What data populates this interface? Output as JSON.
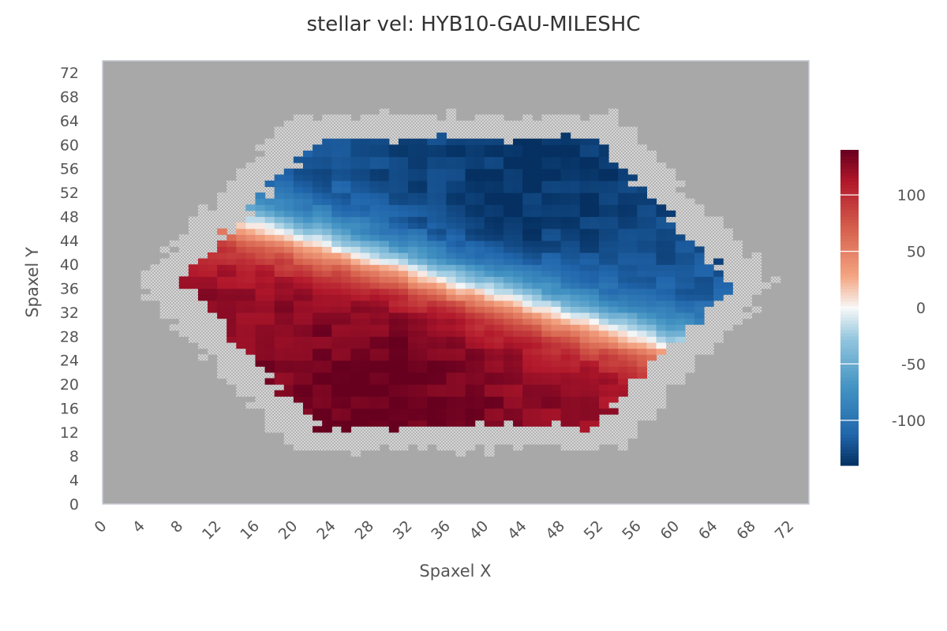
{
  "chart_data": {
    "type": "heatmap",
    "title": "stellar vel: HYB10-GAU-MILESHC",
    "xlabel": "Spaxel X",
    "ylabel": "Spaxel Y",
    "xlim": [
      0,
      74
    ],
    "ylim": [
      0,
      74
    ],
    "xticks": [
      "0",
      "4",
      "8",
      "12",
      "16",
      "20",
      "24",
      "28",
      "32",
      "36",
      "40",
      "44",
      "48",
      "52",
      "56",
      "60",
      "64",
      "68",
      "72"
    ],
    "yticks": [
      "0",
      "4",
      "8",
      "12",
      "16",
      "20",
      "24",
      "28",
      "32",
      "36",
      "40",
      "44",
      "48",
      "52",
      "56",
      "60",
      "64",
      "68",
      "72"
    ],
    "colorbar": {
      "min": -140,
      "max": 140,
      "ticks": [
        "-100",
        "-50",
        "0",
        "50",
        "100"
      ],
      "tick_values": [
        -100,
        -50,
        0,
        50,
        100
      ],
      "colormap": "RdBu_r (diverging blue-white-red)"
    },
    "background_color": "#a8a8a8",
    "field_center": [
      37,
      37
    ],
    "field_hex_rx": 29,
    "field_hex_ry": 24,
    "masked_rim_hatched": true,
    "velocity_field": {
      "description": "rotating disc; negative (approaching) top-left, positive (receding) bottom-right",
      "position_angle_deg": 25,
      "max_velocity": 140
    }
  }
}
